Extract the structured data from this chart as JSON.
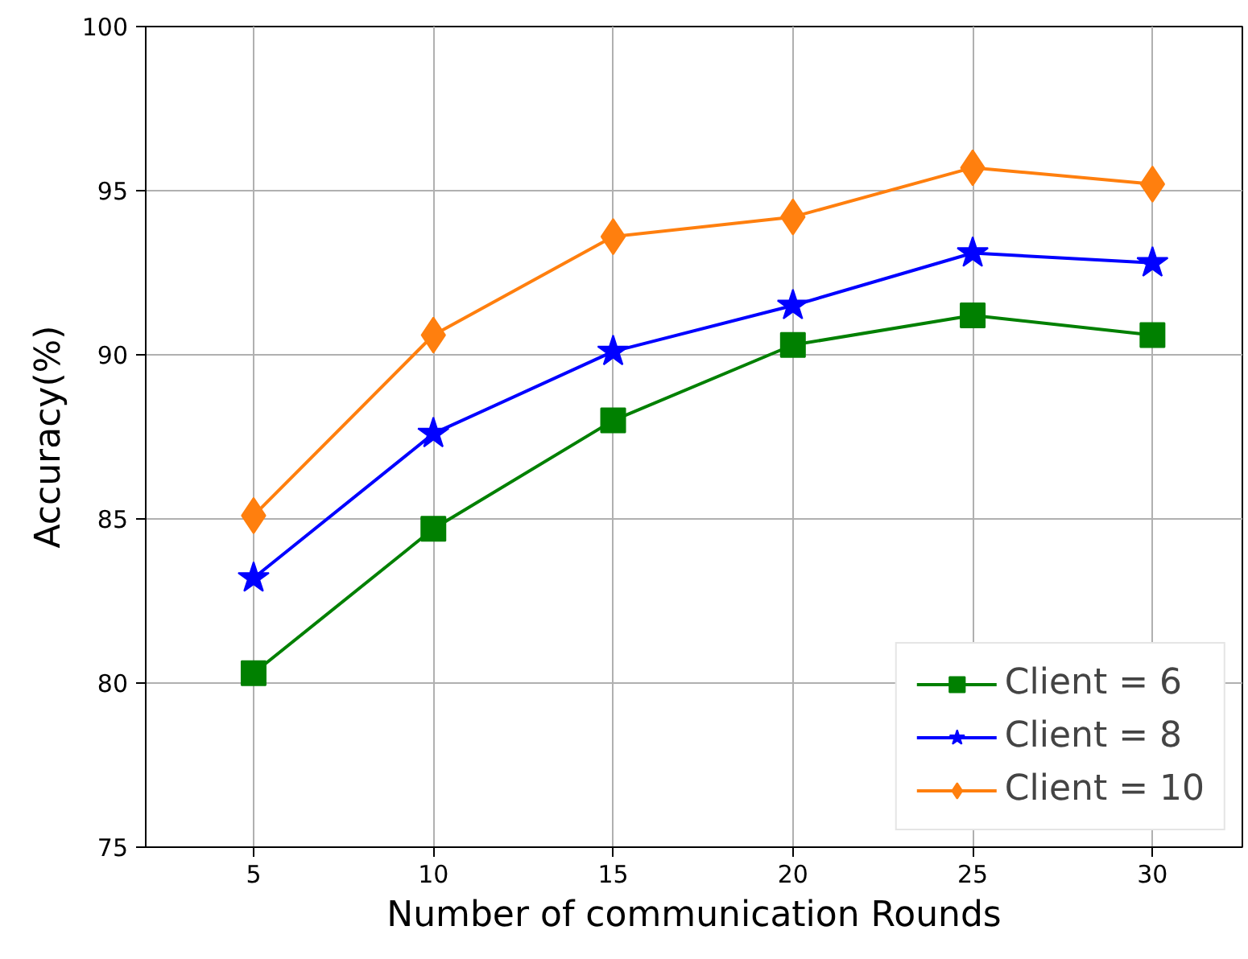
{
  "chart_data": {
    "type": "line",
    "xlabel": "Number of communication Rounds",
    "ylabel": "Accuracy(%)",
    "x": [
      5,
      10,
      15,
      20,
      25,
      30
    ],
    "series": [
      {
        "name": "Client = 6",
        "color": "#008000",
        "marker": "square",
        "values": [
          80.3,
          84.7,
          88.0,
          90.3,
          91.2,
          90.6
        ]
      },
      {
        "name": "Client = 8",
        "color": "#0000ff",
        "marker": "star",
        "values": [
          83.2,
          87.6,
          90.1,
          91.5,
          93.1,
          92.8
        ]
      },
      {
        "name": "Client = 10",
        "color": "#ff7f0e",
        "marker": "diamond",
        "values": [
          85.1,
          90.6,
          93.6,
          94.2,
          95.7,
          95.2
        ]
      }
    ],
    "xlim": [
      2,
      32.5
    ],
    "ylim": [
      75,
      100
    ],
    "xticks": [
      5,
      10,
      15,
      20,
      25,
      30
    ],
    "yticks": [
      75,
      80,
      85,
      90,
      95,
      100
    ],
    "grid": true,
    "legend": "bottom right",
    "line_style": "solid"
  }
}
